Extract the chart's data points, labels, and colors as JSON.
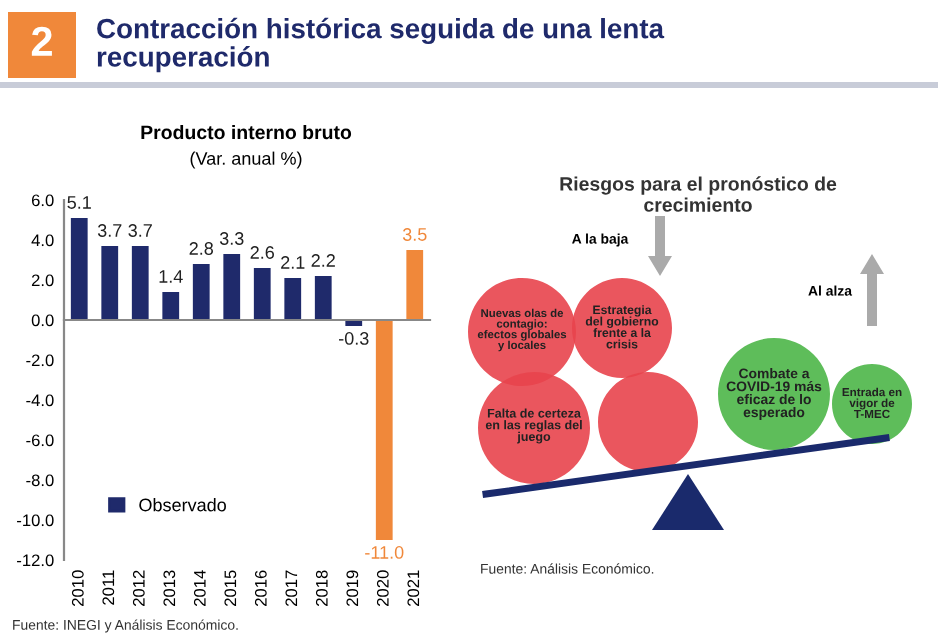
{
  "chart_data": [
    {
      "type": "bar",
      "title": "Producto interno bruto",
      "subtitle": "(Var. anual %)",
      "categories": [
        "2010",
        "2011",
        "2012",
        "2013",
        "2014",
        "2015",
        "2016",
        "2017",
        "2018",
        "2019",
        "2020",
        "2021"
      ],
      "series": [
        {
          "name": "Observado",
          "color": "#1f2a6b",
          "values": [
            5.1,
            3.7,
            3.7,
            1.4,
            2.8,
            3.3,
            2.6,
            2.1,
            2.2,
            -0.3,
            null,
            null
          ],
          "value_labels": [
            "5.1",
            "3.7",
            "3.7",
            "1.4",
            "2.8",
            "3.3",
            "2.6",
            "2.1",
            "2.2",
            "-0.3",
            null,
            null
          ]
        },
        {
          "color": "#f0883a",
          "values": [
            null,
            null,
            null,
            null,
            null,
            null,
            null,
            null,
            null,
            null,
            -11.0,
            3.5
          ],
          "value_labels": [
            null,
            null,
            null,
            null,
            null,
            null,
            null,
            null,
            null,
            null,
            "-11.0",
            "3.5"
          ]
        }
      ],
      "ylim": [
        -12,
        6
      ],
      "yticks": [
        {
          "value": -12,
          "label": "-12.0"
        },
        {
          "value": -10,
          "label": "-10.0"
        },
        {
          "value": -8,
          "label": "-8.0"
        },
        {
          "value": -6,
          "label": "-6.0"
        },
        {
          "value": -4,
          "label": "-4.0"
        },
        {
          "value": -2,
          "label": "-2.0"
        },
        {
          "value": 0,
          "label": "0.0"
        },
        {
          "value": 2,
          "label": "2.0"
        },
        {
          "value": 4,
          "label": "4.0"
        },
        {
          "value": 6,
          "label": "6.0"
        }
      ],
      "legend": "bottom left",
      "annotations": [
        "2",
        "Contracción histórica seguida de una lenta\nrecuperación",
        "Fuente: INEGI y Análisis Económico."
      ]
    },
    {
      "type": "other",
      "title": "Riesgos para el pronóstico de\ncrecimiento",
      "annotations": [
        "A la baja",
        "Al alza",
        "Nuevas olas de\ncontagio:\nefectos globales\ny locales",
        "Estrategia\ndel gobierno\nfrente a la\ncrisis",
        "Falta de certeza\nen las reglas del\njuego",
        "Combate a\nCOVID-19 más\neficaz de lo\nesperado",
        "Entrada en\nvigor de\nT-MEC",
        "Fuente: Análisis Económico."
      ]
    }
  ]
}
